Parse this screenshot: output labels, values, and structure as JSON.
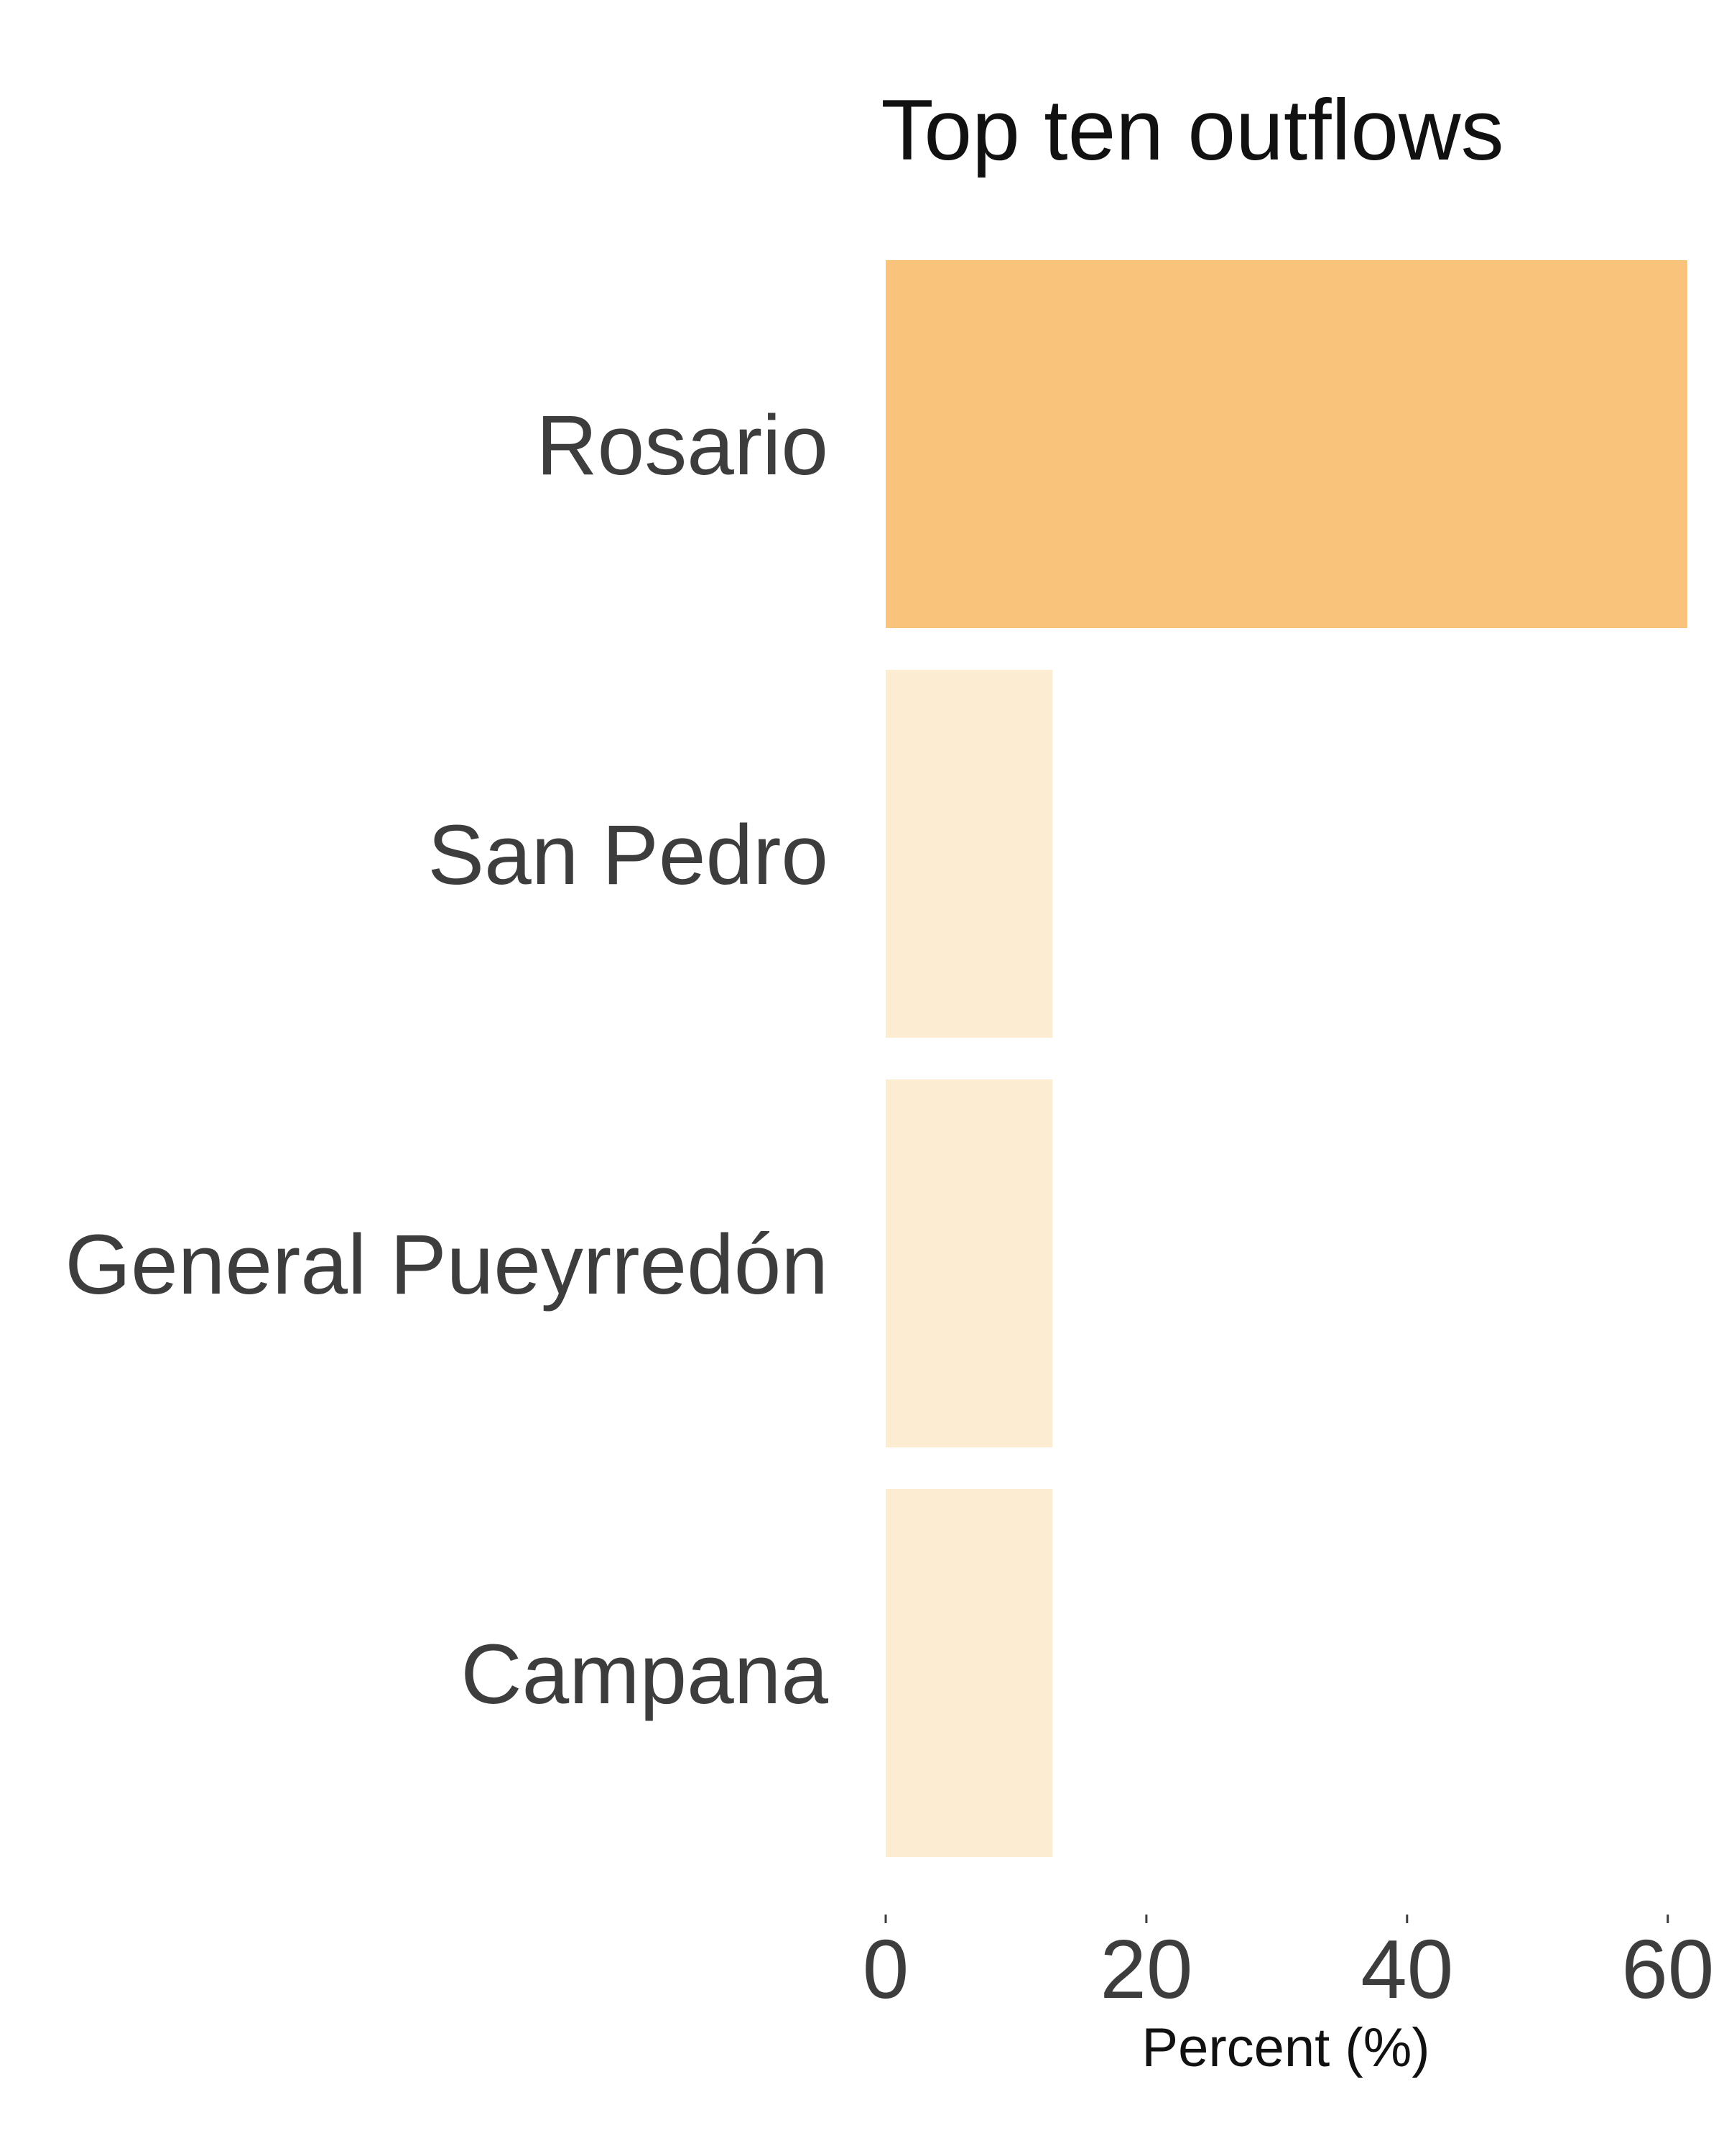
{
  "chart_data": {
    "type": "bar",
    "orientation": "horizontal",
    "title": "Top ten outflows",
    "xlabel": "Percent (%)",
    "ylabel": "",
    "categories": [
      "Rosario",
      "San Pedro",
      "General Pueyrredón",
      "Campana"
    ],
    "values": [
      61.5,
      12.8,
      12.8,
      12.8
    ],
    "xlim": [
      0,
      62
    ],
    "xticks": [
      0,
      20,
      40,
      60
    ],
    "xtick_labels": [
      "0",
      "20",
      "40",
      "60"
    ],
    "grid": false,
    "legend": "none",
    "colors": {
      "highlight": "#fac37c",
      "default": "#fcecd1"
    },
    "highlight_index": 0
  }
}
